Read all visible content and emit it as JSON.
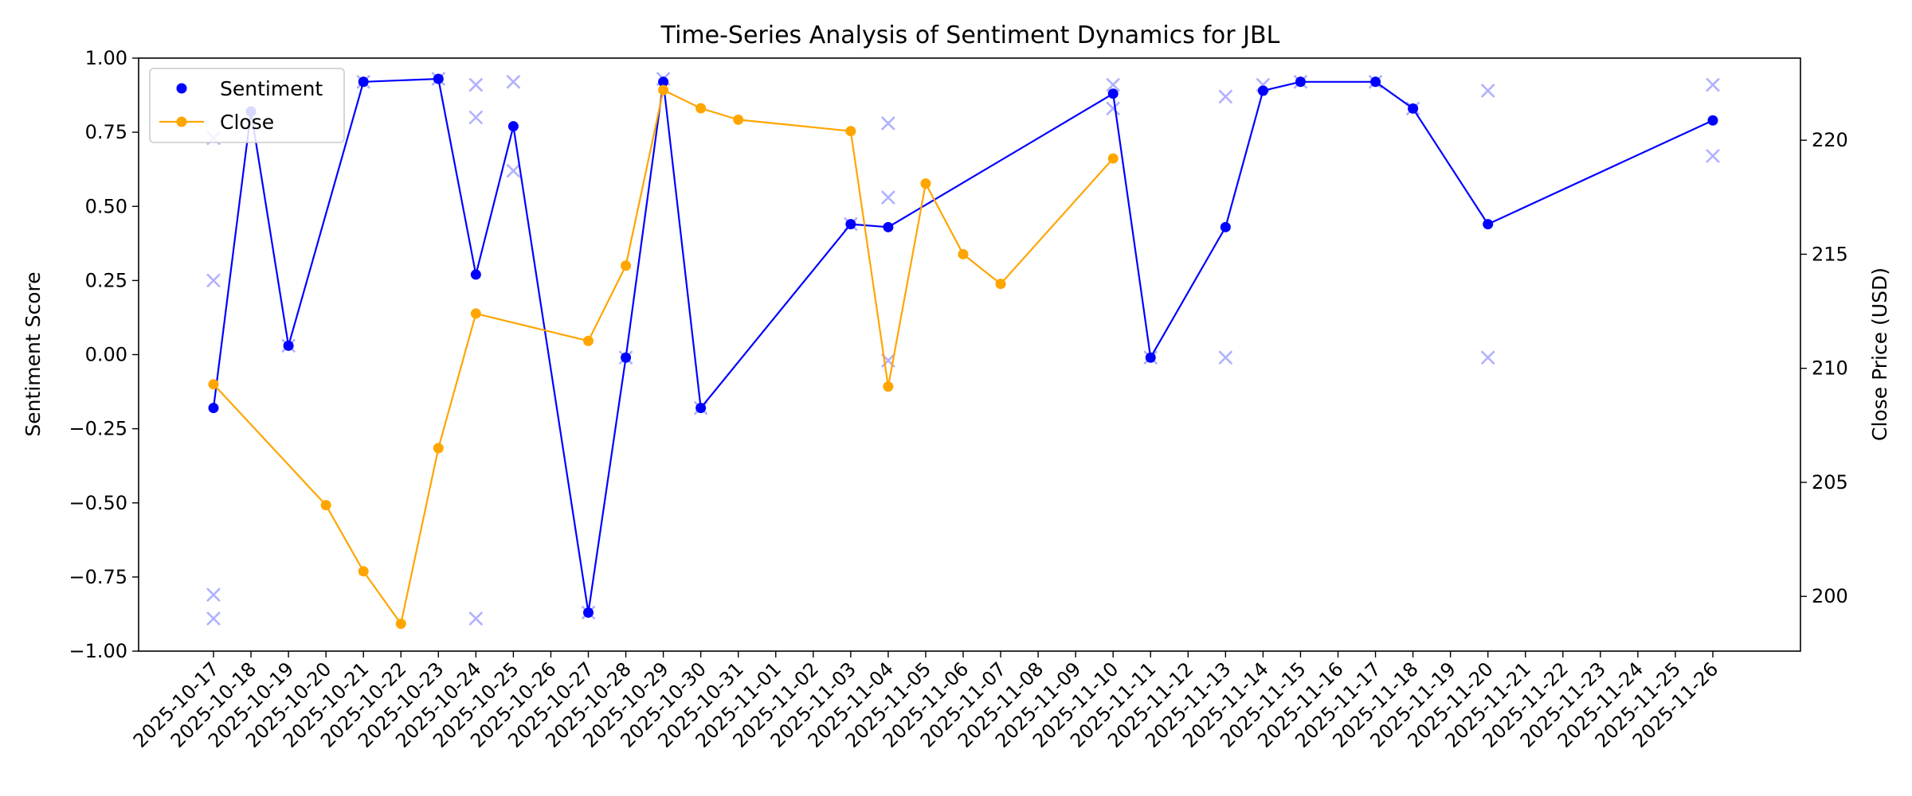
{
  "chart_data": {
    "type": "line",
    "title": "Time-Series Analysis of Sentiment Dynamics for JBL",
    "xlabel": "",
    "ylabel": "Sentiment Score",
    "y2label": "Close Price (USD)",
    "x_categories": [
      "2025-10-17",
      "2025-10-18",
      "2025-10-19",
      "2025-10-20",
      "2025-10-21",
      "2025-10-22",
      "2025-10-23",
      "2025-10-24",
      "2025-10-25",
      "2025-10-26",
      "2025-10-27",
      "2025-10-28",
      "2025-10-29",
      "2025-10-30",
      "2025-10-31",
      "2025-11-01",
      "2025-11-02",
      "2025-11-03",
      "2025-11-04",
      "2025-11-05",
      "2025-11-06",
      "2025-11-07",
      "2025-11-08",
      "2025-11-09",
      "2025-11-10",
      "2025-11-11",
      "2025-11-12",
      "2025-11-13",
      "2025-11-14",
      "2025-11-15",
      "2025-11-16",
      "2025-11-17",
      "2025-11-18",
      "2025-11-19",
      "2025-11-20",
      "2025-11-21",
      "2025-11-22",
      "2025-11-23",
      "2025-11-24",
      "2025-11-25",
      "2025-11-26"
    ],
    "ylim": [
      -1.0,
      1.0
    ],
    "y_ticks": [
      1.0,
      0.75,
      0.5,
      0.25,
      0.0,
      -0.25,
      -0.5,
      -0.75,
      -1.0
    ],
    "y_tick_labels": [
      "1.00",
      "0.75",
      "0.50",
      "0.25",
      "0.00",
      "−0.25",
      "−0.50",
      "−0.75",
      "−1.00"
    ],
    "y2lim": [
      197.6,
      223.6
    ],
    "y2_ticks": [
      220,
      215,
      210,
      205,
      200
    ],
    "y2_tick_labels": [
      "220",
      "215",
      "210",
      "205",
      "200"
    ],
    "legend": {
      "placement": "top-left",
      "entries": [
        {
          "label": "Sentiment",
          "kind": "marker",
          "color": "#0000ff"
        },
        {
          "label": "Close",
          "kind": "line-marker",
          "color": "#ffa500"
        }
      ]
    },
    "series": [
      {
        "name": "Sentiment",
        "axis": "left",
        "color": "#0000ff",
        "points": [
          {
            "x": "2025-10-17",
            "y": -0.18
          },
          {
            "x": "2025-10-18",
            "y": 0.82
          },
          {
            "x": "2025-10-19",
            "y": 0.03
          },
          {
            "x": "2025-10-21",
            "y": 0.92
          },
          {
            "x": "2025-10-23",
            "y": 0.93
          },
          {
            "x": "2025-10-24",
            "y": 0.27
          },
          {
            "x": "2025-10-25",
            "y": 0.77
          },
          {
            "x": "2025-10-27",
            "y": -0.87
          },
          {
            "x": "2025-10-28",
            "y": -0.01
          },
          {
            "x": "2025-10-29",
            "y": 0.92
          },
          {
            "x": "2025-10-30",
            "y": -0.18
          },
          {
            "x": "2025-11-03",
            "y": 0.44
          },
          {
            "x": "2025-11-04",
            "y": 0.43
          },
          {
            "x": "2025-11-10",
            "y": 0.88
          },
          {
            "x": "2025-11-11",
            "y": -0.01
          },
          {
            "x": "2025-11-13",
            "y": 0.43
          },
          {
            "x": "2025-11-14",
            "y": 0.89
          },
          {
            "x": "2025-11-15",
            "y": 0.92
          },
          {
            "x": "2025-11-17",
            "y": 0.92
          },
          {
            "x": "2025-11-18",
            "y": 0.83
          },
          {
            "x": "2025-11-20",
            "y": 0.44
          },
          {
            "x": "2025-11-26",
            "y": 0.79
          }
        ]
      },
      {
        "name": "Close",
        "axis": "right",
        "color": "#ffa500",
        "points": [
          {
            "x": "2025-10-17",
            "y": 209.3
          },
          {
            "x": "2025-10-20",
            "y": 204.0
          },
          {
            "x": "2025-10-21",
            "y": 201.1
          },
          {
            "x": "2025-10-22",
            "y": 198.8
          },
          {
            "x": "2025-10-23",
            "y": 206.5
          },
          {
            "x": "2025-10-24",
            "y": 212.4
          },
          {
            "x": "2025-10-27",
            "y": 211.2
          },
          {
            "x": "2025-10-28",
            "y": 214.5
          },
          {
            "x": "2025-10-29",
            "y": 222.2
          },
          {
            "x": "2025-10-30",
            "y": 221.4
          },
          {
            "x": "2025-10-31",
            "y": 220.9
          },
          {
            "x": "2025-11-03",
            "y": 220.4
          },
          {
            "x": "2025-11-04",
            "y": 209.2
          },
          {
            "x": "2025-11-05",
            "y": 218.1
          },
          {
            "x": "2025-11-06",
            "y": 215.0
          },
          {
            "x": "2025-11-07",
            "y": 213.7
          },
          {
            "x": "2025-11-10",
            "y": 219.2
          }
        ]
      }
    ],
    "raw_sentiment": {
      "color": "#0000ff",
      "opacity": 0.3,
      "marker": "x",
      "points": [
        {
          "x": "2025-10-17",
          "y": 0.73
        },
        {
          "x": "2025-10-17",
          "y": 0.25
        },
        {
          "x": "2025-10-17",
          "y": -0.81
        },
        {
          "x": "2025-10-17",
          "y": -0.89
        },
        {
          "x": "2025-10-19",
          "y": 0.03
        },
        {
          "x": "2025-10-21",
          "y": 0.92
        },
        {
          "x": "2025-10-23",
          "y": 0.93
        },
        {
          "x": "2025-10-24",
          "y": 0.91
        },
        {
          "x": "2025-10-24",
          "y": 0.8
        },
        {
          "x": "2025-10-24",
          "y": -0.89
        },
        {
          "x": "2025-10-25",
          "y": 0.92
        },
        {
          "x": "2025-10-25",
          "y": 0.62
        },
        {
          "x": "2025-10-27",
          "y": -0.87
        },
        {
          "x": "2025-10-28",
          "y": -0.01
        },
        {
          "x": "2025-10-29",
          "y": 0.93
        },
        {
          "x": "2025-10-30",
          "y": -0.18
        },
        {
          "x": "2025-11-03",
          "y": 0.44
        },
        {
          "x": "2025-11-04",
          "y": 0.78
        },
        {
          "x": "2025-11-04",
          "y": 0.53
        },
        {
          "x": "2025-11-04",
          "y": -0.02
        },
        {
          "x": "2025-11-10",
          "y": 0.91
        },
        {
          "x": "2025-11-10",
          "y": 0.83
        },
        {
          "x": "2025-11-11",
          "y": -0.01
        },
        {
          "x": "2025-11-13",
          "y": 0.87
        },
        {
          "x": "2025-11-13",
          "y": -0.01
        },
        {
          "x": "2025-11-14",
          "y": 0.91
        },
        {
          "x": "2025-11-15",
          "y": 0.92
        },
        {
          "x": "2025-11-17",
          "y": 0.92
        },
        {
          "x": "2025-11-18",
          "y": 0.83
        },
        {
          "x": "2025-11-20",
          "y": 0.89
        },
        {
          "x": "2025-11-20",
          "y": -0.01
        },
        {
          "x": "2025-11-26",
          "y": 0.91
        },
        {
          "x": "2025-11-26",
          "y": 0.67
        }
      ]
    },
    "grid": false
  }
}
